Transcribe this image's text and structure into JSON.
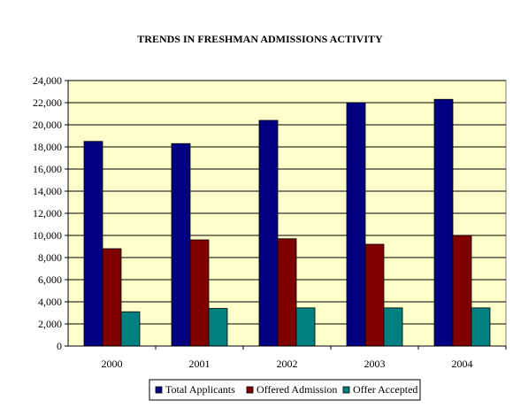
{
  "chart_data": {
    "type": "bar",
    "title": "TRENDS IN FRESHMAN ADMISSIONS ACTIVITY",
    "categories": [
      "2000",
      "2001",
      "2002",
      "2003",
      "2004"
    ],
    "series": [
      {
        "name": "Total Applicants",
        "color": "#000080",
        "values": [
          18500,
          18300,
          20400,
          22000,
          22300
        ]
      },
      {
        "name": "Offered Admission",
        "color": "#800000",
        "values": [
          8800,
          9600,
          9700,
          9200,
          10000
        ]
      },
      {
        "name": "Offer Accepted",
        "color": "#008080",
        "values": [
          3100,
          3400,
          3450,
          3450,
          3450
        ]
      }
    ],
    "ylim": [
      0,
      24000
    ],
    "yticks": [
      0,
      2000,
      4000,
      6000,
      8000,
      10000,
      12000,
      14000,
      16000,
      18000,
      20000,
      22000,
      24000
    ],
    "ytick_labels": [
      "0",
      "2,000",
      "4,000",
      "6,000",
      "8,000",
      "10,000",
      "12,000",
      "14,000",
      "16,000",
      "18,000",
      "20,000",
      "22,000",
      "24,000"
    ],
    "grid": true,
    "plot_background": "#ffffcc",
    "legend_position": "bottom"
  }
}
